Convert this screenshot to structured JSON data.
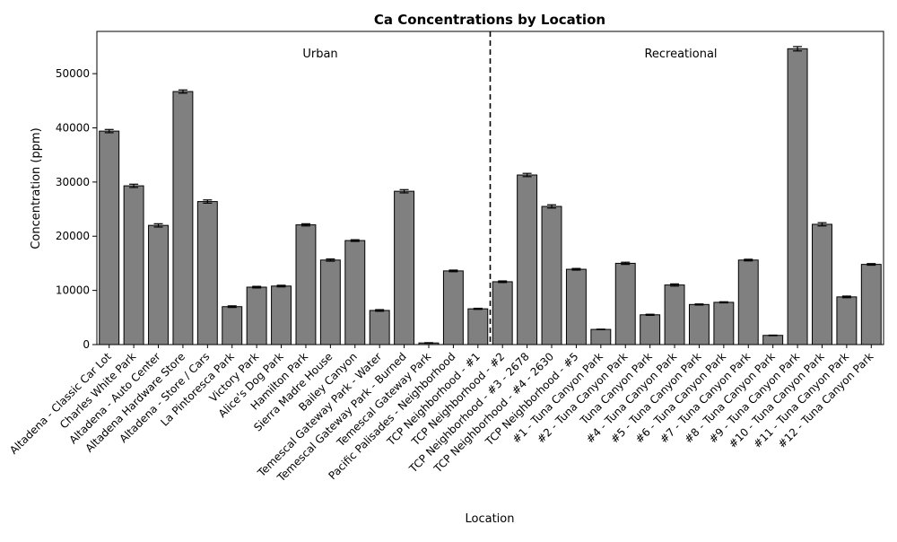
{
  "chart_data": {
    "type": "bar",
    "title": "Ca Concentrations by Location",
    "xlabel": "Location",
    "ylabel": "Concentration (ppm)",
    "ylim": [
      0,
      57800
    ],
    "yticks": [
      0,
      10000,
      20000,
      30000,
      40000,
      50000
    ],
    "ytick_labels": [
      "0",
      "10000",
      "20000",
      "30000",
      "40000",
      "50000"
    ],
    "grid": false,
    "bar_color": "#808080",
    "edge_color": "#000000",
    "error_bars": true,
    "divider_after_index": 15,
    "group_labels": [
      "Urban",
      "Recreational"
    ],
    "categories": [
      "Altadena - Classic Car Lot",
      "Charles White Park",
      "Altadena - Auto Center",
      "Altadena Hardware Store",
      "Altadena - Store / Cars",
      "La Pintoresca Park",
      "Victory Park",
      "Alice's Dog Park",
      "Hamilton Park",
      "Sierra Madre House",
      "Bailey Canyon",
      "Temescal Gateway Park - Water",
      "Temescal Gateway Park - Burned",
      "Temescal Gateway Park",
      "Pacific Palisades - Neighborhood",
      "TCP Neighborhood - #1",
      "TCP Neighborhood - #2",
      "TCP Neighborhood - #3 - 2678",
      "TCP Neighborhood - #4 - 2630",
      "TCP Neighborhood - #5",
      "#1 - Tuna Canyon Park",
      "#2 - Tuna Canyon Park",
      "Tuna Canyon Park",
      "#4 - Tuna Canyon Park",
      "#5 - Tuna Canyon Park",
      "#6 - Tuna Canyon Park",
      "#7 - Tuna Canyon Park",
      "#8 - Tuna Canyon Park",
      "#9 - Tuna Canyon Park",
      "#10 - Tuna Canyon Park",
      "#11 - Tuna Canyon Park",
      "#12 - Tuna Canyon Park"
    ],
    "values": [
      39400,
      29300,
      22000,
      46700,
      26400,
      7000,
      10600,
      10800,
      22100,
      15600,
      19200,
      6300,
      28300,
      300,
      13600,
      6600,
      11600,
      31300,
      25500,
      13900,
      2800,
      15000,
      5500,
      11000,
      7400,
      7800,
      15600,
      1700,
      54600,
      22200,
      8800,
      14800
    ],
    "errors": [
      300,
      300,
      300,
      300,
      300,
      150,
      150,
      150,
      200,
      200,
      150,
      150,
      300,
      50,
      150,
      100,
      150,
      300,
      300,
      150,
      50,
      200,
      100,
      200,
      100,
      100,
      150,
      50,
      400,
      300,
      150,
      150
    ]
  }
}
